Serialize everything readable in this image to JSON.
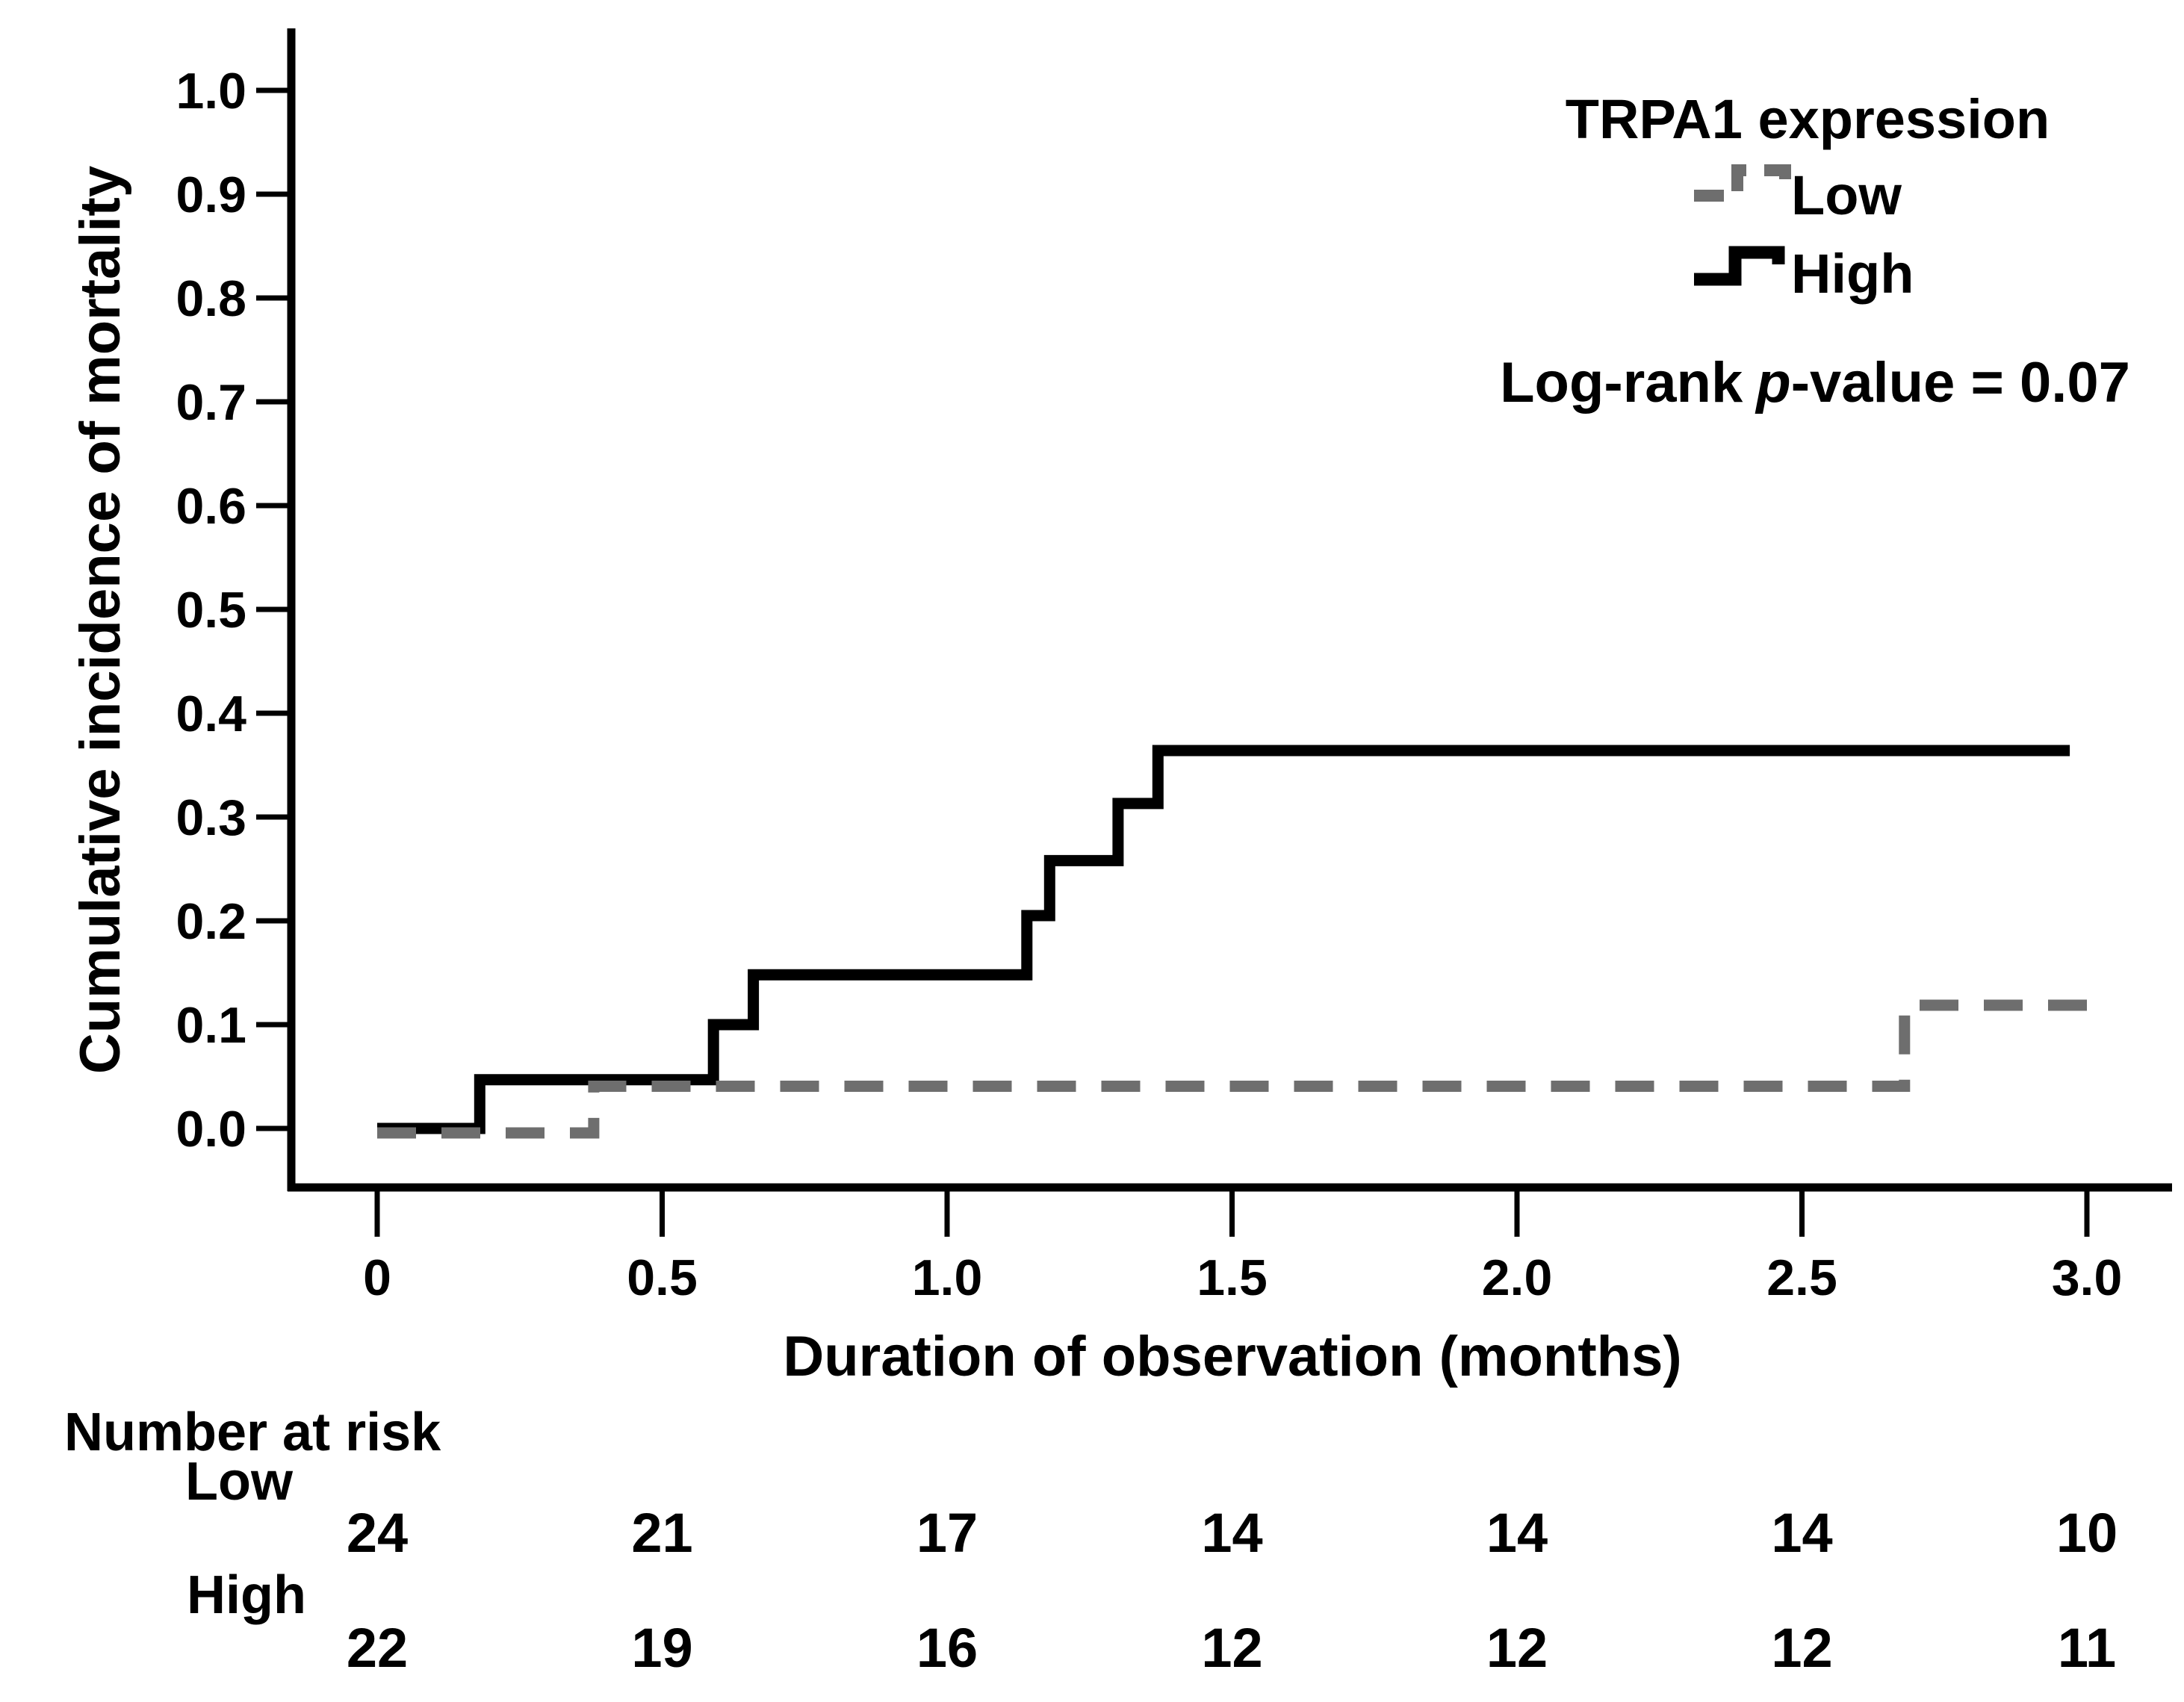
{
  "chart_data": {
    "type": "line",
    "subtype": "cumulative-incidence-step",
    "title": "",
    "xlabel": "Duration of observation (months)",
    "ylabel": "Cumulative incidence of mortality",
    "xlim": [
      0,
      3.0
    ],
    "ylim": [
      0.0,
      1.0
    ],
    "grid": false,
    "x_ticks": [
      0,
      0.5,
      1.0,
      1.5,
      2.0,
      2.5,
      3.0
    ],
    "x_tick_labels": [
      "0",
      "0.5",
      "1.0",
      "1.5",
      "2.0",
      "2.5",
      "3.0"
    ],
    "y_ticks": [
      0.0,
      0.1,
      0.2,
      0.3,
      0.4,
      0.5,
      0.6,
      0.7,
      0.8,
      0.9,
      1.0
    ],
    "y_tick_labels": [
      "0.0",
      "0.1",
      "0.2",
      "0.3",
      "0.4",
      "0.5",
      "0.6",
      "0.7",
      "0.8",
      "0.9",
      "1.0"
    ],
    "legend": {
      "title": "TRPA1 expression",
      "position": "top-right",
      "entries": [
        {
          "label": "Low",
          "style": "dashed",
          "color": "#6e6e6e"
        },
        {
          "label": "High",
          "style": "solid",
          "color": "#000000"
        }
      ]
    },
    "annotation": {
      "prefix": "Log-rank",
      "italic_part": "p",
      "suffix": "-value = 0.07"
    },
    "colors": {
      "low_gray": "#6e6e6e",
      "high_black": "#000000"
    },
    "series": [
      {
        "name": "Low",
        "style": "dashed",
        "color": "#6e6e6e",
        "points": [
          [
            0,
            0
          ],
          [
            0.38,
            0
          ],
          [
            0.38,
            0.045
          ],
          [
            2.68,
            0.045
          ],
          [
            2.68,
            0.123
          ],
          [
            3.0,
            0.123
          ]
        ]
      },
      {
        "name": "High",
        "style": "solid",
        "color": "#000000",
        "points": [
          [
            0,
            0
          ],
          [
            0.18,
            0
          ],
          [
            0.18,
            0.047
          ],
          [
            0.59,
            0.047
          ],
          [
            0.59,
            0.1
          ],
          [
            0.66,
            0.1
          ],
          [
            0.66,
            0.148
          ],
          [
            1.14,
            0.148
          ],
          [
            1.14,
            0.205
          ],
          [
            1.18,
            0.205
          ],
          [
            1.18,
            0.258
          ],
          [
            1.3,
            0.258
          ],
          [
            1.3,
            0.313
          ],
          [
            1.37,
            0.313
          ],
          [
            1.37,
            0.364
          ],
          [
            2.97,
            0.364
          ]
        ]
      }
    ]
  },
  "risk_table": {
    "title": "Number at risk",
    "columns_months": [
      0,
      0.5,
      1.0,
      1.5,
      2.0,
      2.5,
      3.0
    ],
    "rows": [
      {
        "label": "Low",
        "values": [
          "24",
          "21",
          "17",
          "14",
          "14",
          "14",
          "10"
        ]
      },
      {
        "label": "High",
        "values": [
          "22",
          "19",
          "16",
          "12",
          "12",
          "12",
          "11"
        ]
      }
    ]
  }
}
